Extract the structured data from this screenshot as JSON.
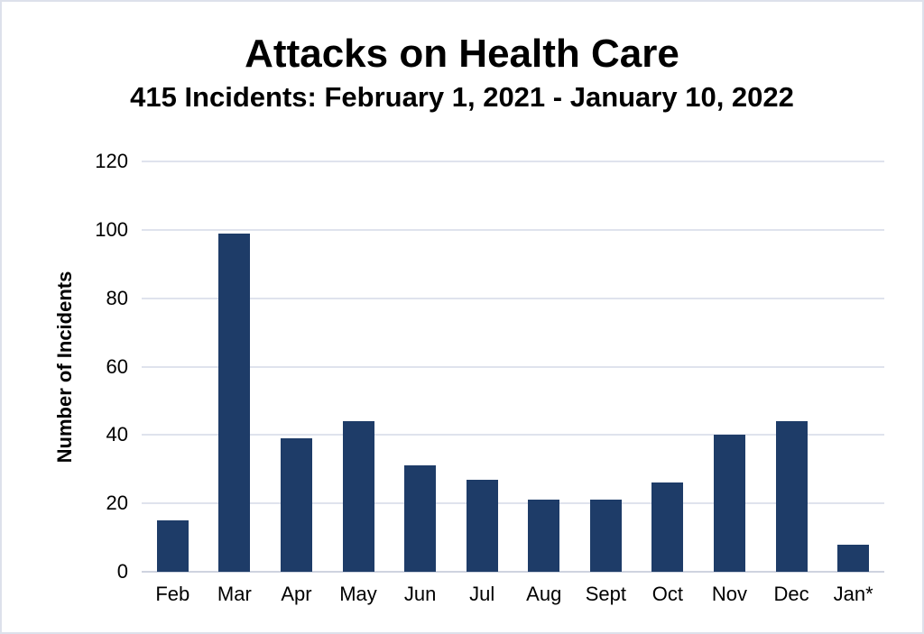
{
  "chart_data": {
    "type": "bar",
    "title": "Attacks on Health Care",
    "subtitle": "415 Incidents: February 1, 2021 - January 10, 2022",
    "ylabel": "Number of Incidents",
    "xlabel": "",
    "categories": [
      "Feb",
      "Mar",
      "Apr",
      "May",
      "Jun",
      "Jul",
      "Aug",
      "Sept",
      "Oct",
      "Nov",
      "Dec",
      "Jan*"
    ],
    "values": [
      15,
      99,
      39,
      44,
      31,
      27,
      21,
      21,
      26,
      40,
      44,
      8
    ],
    "total_incidents": "415",
    "ylim": [
      0,
      120
    ],
    "yticks": [
      0,
      20,
      40,
      60,
      80,
      100,
      120
    ],
    "grid": true,
    "legend": "none",
    "colors": {
      "bar": "#1e3c68",
      "gridline": "#dfe3ed",
      "baseline": "#ced3df",
      "frame_border": "#dde1eb",
      "text": "#000000"
    }
  }
}
